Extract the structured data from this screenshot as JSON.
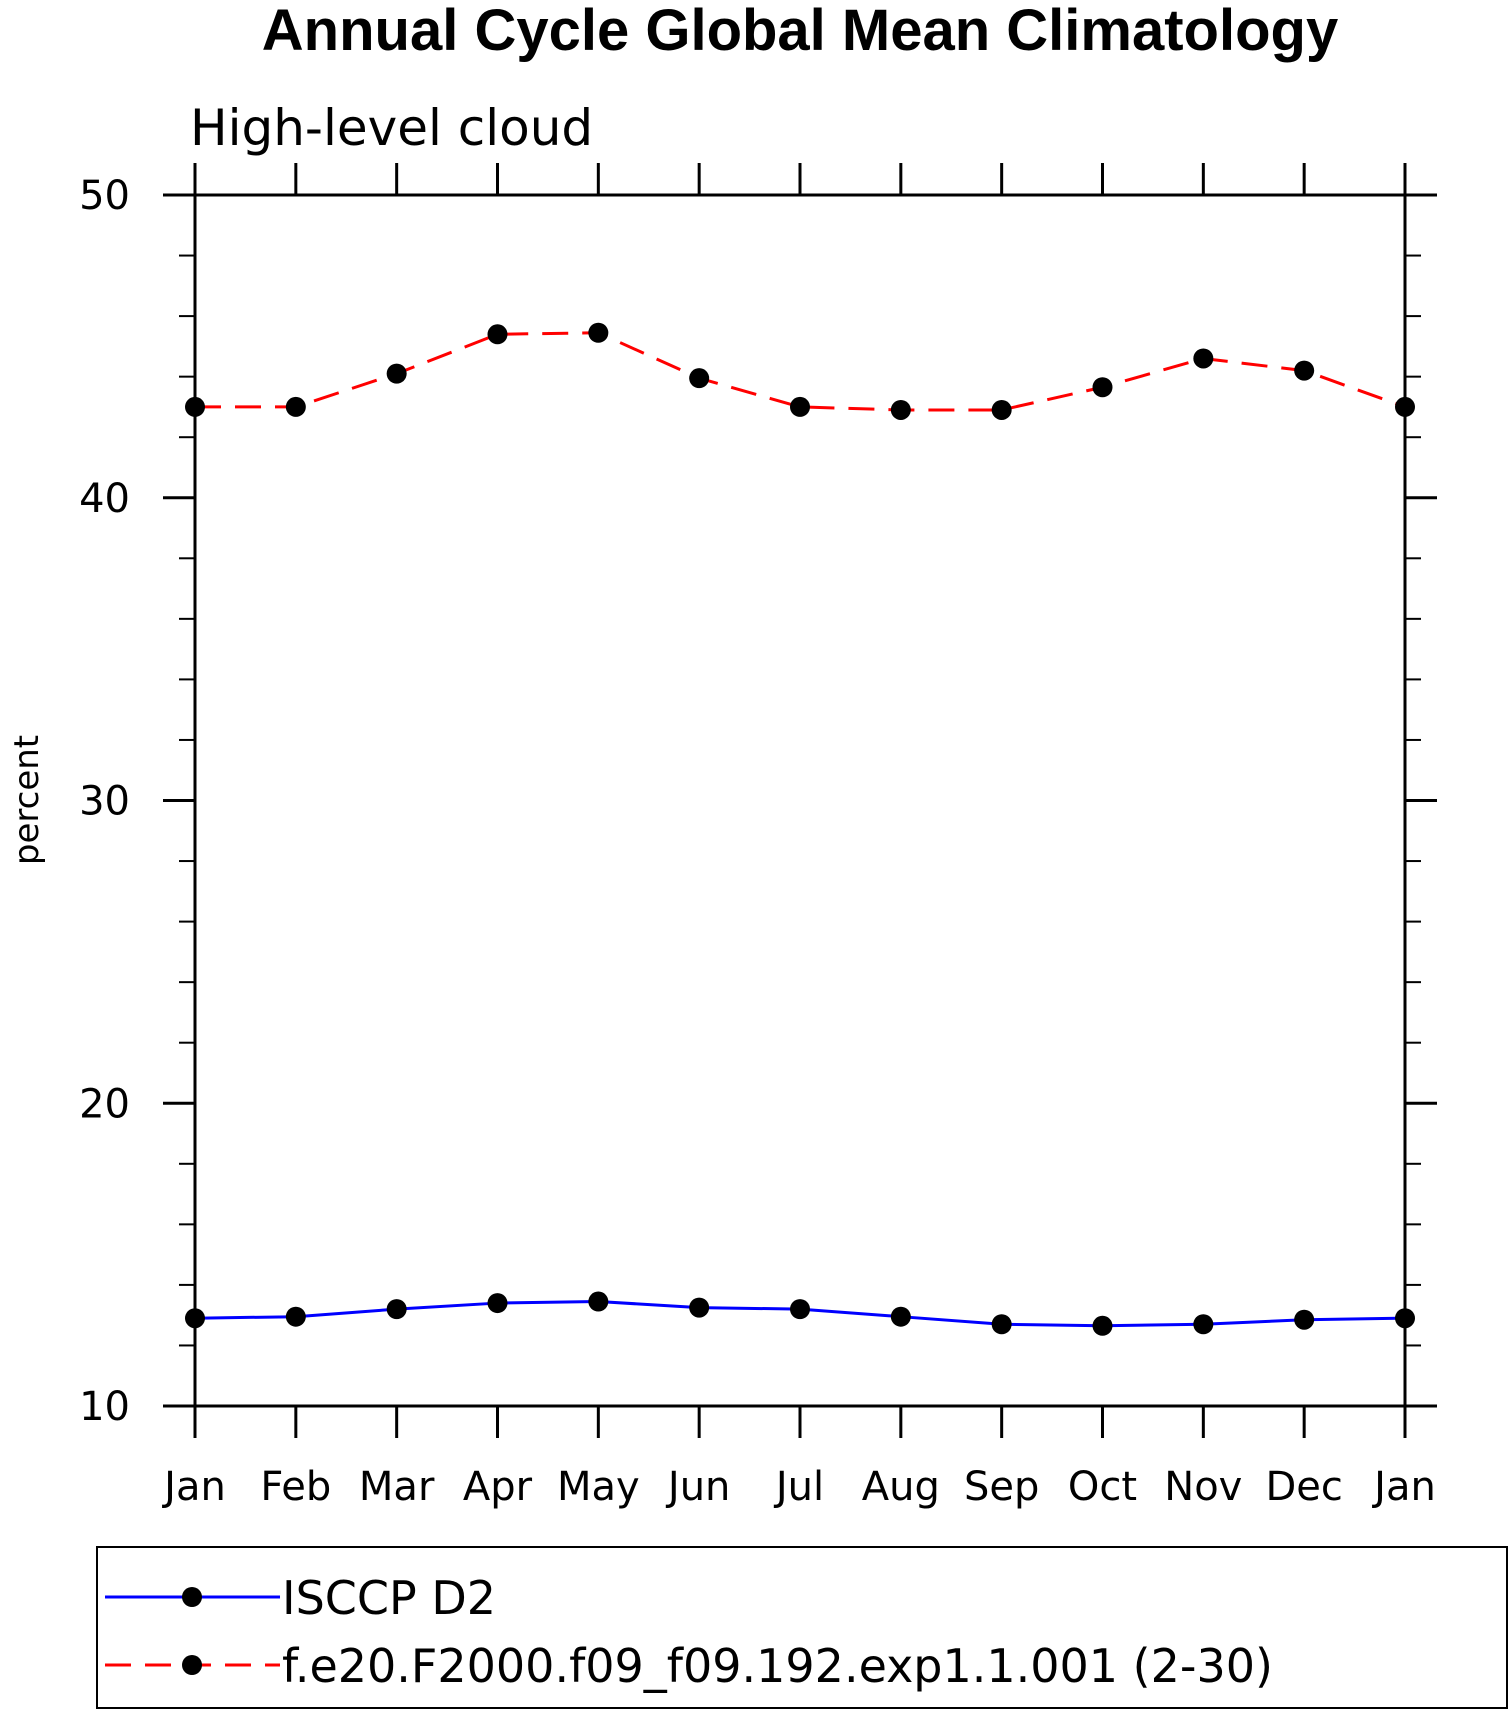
{
  "chart_data": {
    "type": "line",
    "title": "Annual Cycle Global Mean Climatology",
    "subtitle": "High-level cloud",
    "xlabel": "",
    "ylabel": "percent",
    "categories": [
      "Jan",
      "Feb",
      "Mar",
      "Apr",
      "May",
      "Jun",
      "Jul",
      "Aug",
      "Sep",
      "Oct",
      "Nov",
      "Dec",
      "Jan"
    ],
    "ylim": [
      10,
      50
    ],
    "yticks": [
      10,
      20,
      30,
      40,
      50
    ],
    "yminor_step": 2,
    "grid": false,
    "legend_position": "bottom",
    "series": [
      {
        "name": "ISCCP D2",
        "color": "#0000ff",
        "dash": "solid",
        "marker": "filled-circle",
        "values": [
          12.9,
          12.95,
          13.2,
          13.4,
          13.45,
          13.25,
          13.2,
          12.95,
          12.7,
          12.65,
          12.7,
          12.85,
          12.9
        ]
      },
      {
        "name": "f.e20.F2000.f09_f09.192.exp1.1.001 (2-30)",
        "color": "#ff0000",
        "dash": "dashed",
        "marker": "filled-circle",
        "values": [
          43.0,
          43.0,
          44.1,
          45.4,
          45.45,
          43.95,
          43.0,
          42.9,
          42.9,
          43.65,
          44.6,
          44.2,
          43.0
        ]
      }
    ]
  }
}
